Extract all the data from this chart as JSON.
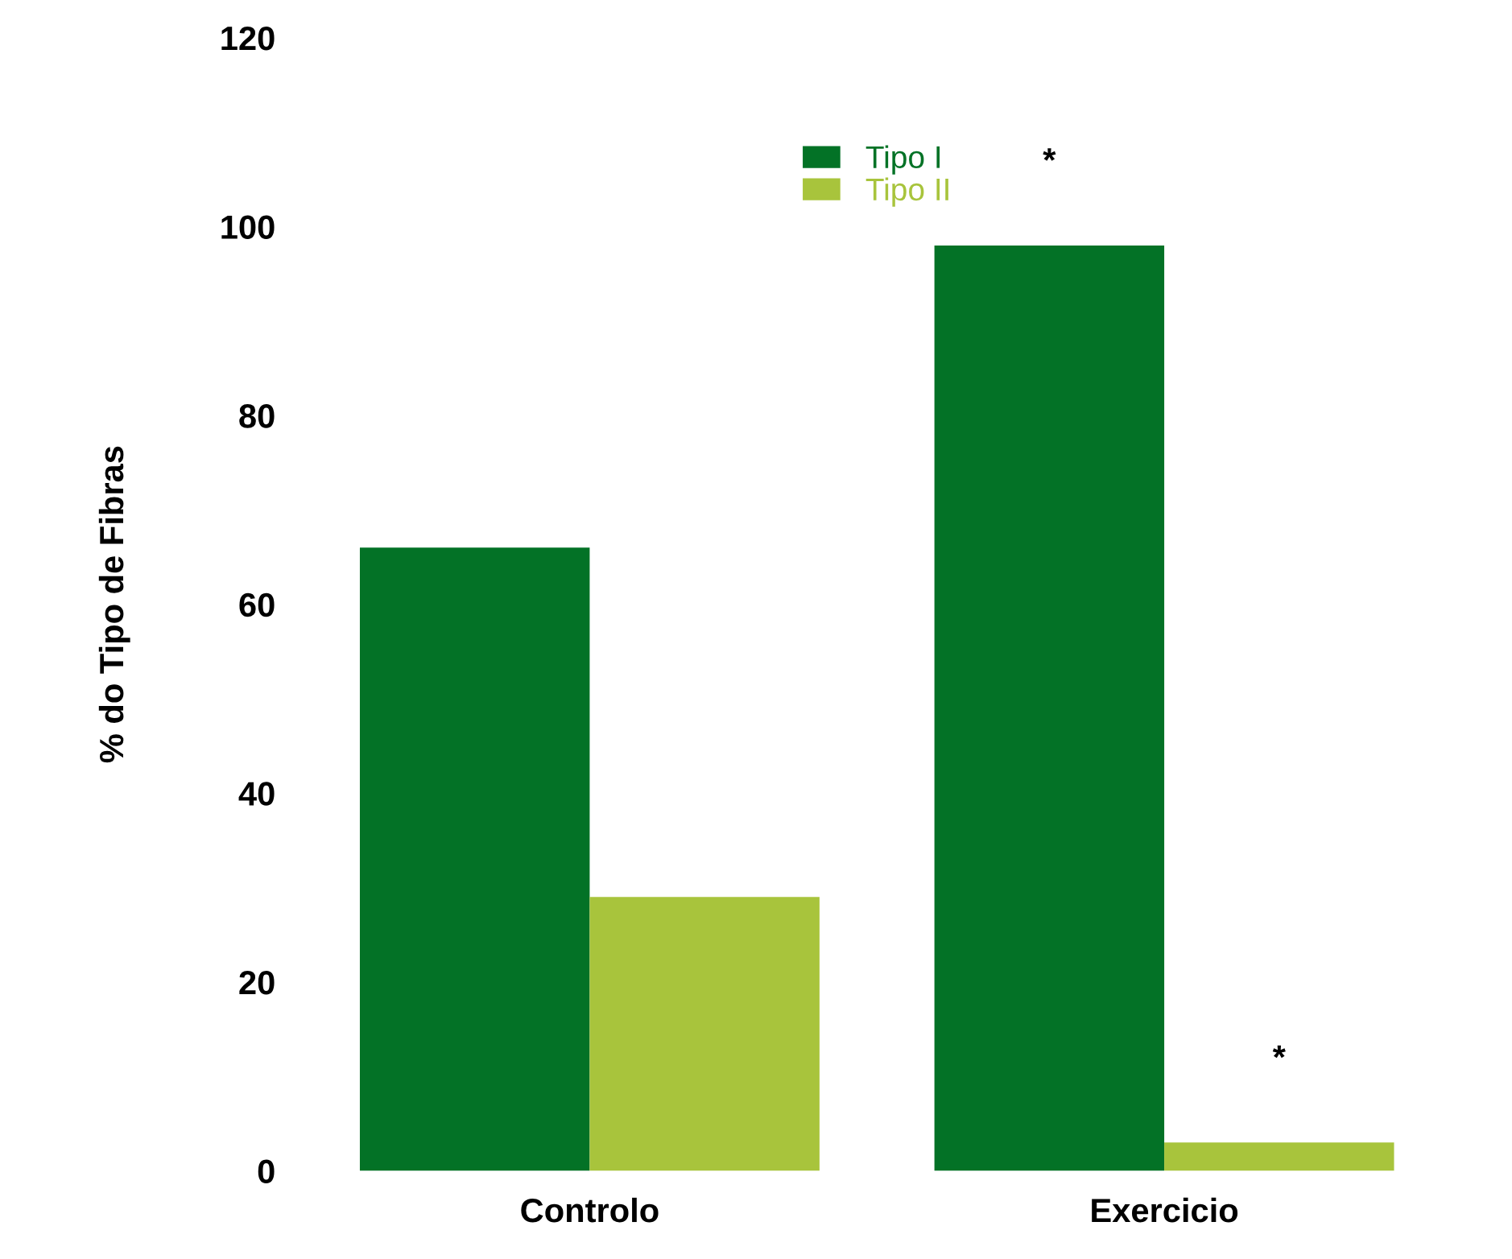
{
  "chart_data": {
    "type": "bar",
    "ylabel": "% do Tipo de Fibras",
    "categories": [
      "Controlo",
      "Exercicio"
    ],
    "series": [
      {
        "name": "Tipo I",
        "color": "#037226",
        "values": [
          66,
          98
        ]
      },
      {
        "name": "Tipo II",
        "color": "#a8c43c",
        "values": [
          29,
          3
        ]
      }
    ],
    "ylim": [
      0,
      120
    ],
    "yticks": [
      0,
      20,
      40,
      60,
      80,
      100,
      120
    ],
    "grid": false,
    "legend": "top",
    "annotations": [
      "*",
      "*"
    ]
  }
}
